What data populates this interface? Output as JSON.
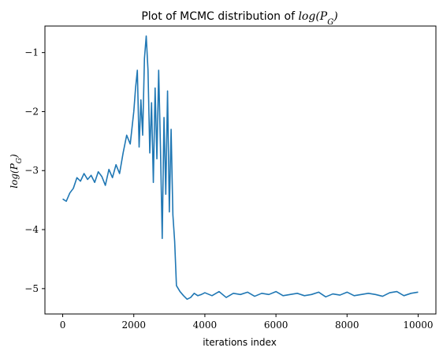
{
  "chart_data": {
    "type": "line",
    "title_prefix": "Plot of MCMC distribution of ",
    "title_math": "log(P",
    "title_math_sub": "G",
    "title_math_close": ")",
    "xlabel": "iterations index",
    "ylabel": "log(P",
    "ylabel_sub": "G",
    "ylabel_close": ")",
    "xlim": [
      -500,
      10500
    ],
    "ylim": [
      -5.43,
      -0.55
    ],
    "xticks": [
      0,
      2000,
      4000,
      6000,
      8000,
      10000
    ],
    "xtick_labels": [
      "0",
      "2000",
      "4000",
      "6000",
      "8000",
      "10000"
    ],
    "yticks": [
      -5,
      -4,
      -3,
      -2,
      -1
    ],
    "ytick_labels": [
      "−5",
      "−4",
      "−3",
      "−2",
      "−1"
    ],
    "grid": false,
    "series": [
      {
        "color": "#1f77b4",
        "x": [
          0,
          100,
          200,
          300,
          400,
          500,
          600,
          700,
          800,
          900,
          1000,
          1100,
          1200,
          1300,
          1400,
          1500,
          1600,
          1700,
          1800,
          1900,
          2000,
          2050,
          2100,
          2150,
          2200,
          2250,
          2300,
          2350,
          2400,
          2450,
          2500,
          2550,
          2600,
          2650,
          2700,
          2750,
          2800,
          2850,
          2900,
          2950,
          3000,
          3050,
          3100,
          3150,
          3200,
          3300,
          3400,
          3500,
          3600,
          3700,
          3800,
          3900,
          4000,
          4200,
          4400,
          4600,
          4800,
          5000,
          5200,
          5400,
          5600,
          5800,
          6000,
          6200,
          6400,
          6600,
          6800,
          7000,
          7200,
          7400,
          7600,
          7800,
          8000,
          8200,
          8400,
          8600,
          8800,
          9000,
          9200,
          9400,
          9600,
          9800,
          10000
        ],
        "y": [
          -3.48,
          -3.52,
          -3.38,
          -3.3,
          -3.12,
          -3.18,
          -3.05,
          -3.15,
          -3.08,
          -3.2,
          -3.02,
          -3.1,
          -3.25,
          -2.98,
          -3.12,
          -2.9,
          -3.05,
          -2.7,
          -2.4,
          -2.55,
          -2.0,
          -1.6,
          -1.3,
          -2.6,
          -1.8,
          -2.4,
          -1.1,
          -0.72,
          -1.3,
          -2.7,
          -1.85,
          -3.2,
          -1.6,
          -2.8,
          -1.3,
          -2.6,
          -4.15,
          -2.1,
          -3.4,
          -1.65,
          -3.7,
          -2.3,
          -3.75,
          -4.2,
          -4.95,
          -5.05,
          -5.12,
          -5.18,
          -5.15,
          -5.08,
          -5.12,
          -5.1,
          -5.07,
          -5.12,
          -5.05,
          -5.15,
          -5.08,
          -5.1,
          -5.06,
          -5.13,
          -5.08,
          -5.1,
          -5.05,
          -5.12,
          -5.1,
          -5.08,
          -5.12,
          -5.1,
          -5.06,
          -5.14,
          -5.09,
          -5.11,
          -5.06,
          -5.12,
          -5.1,
          -5.08,
          -5.1,
          -5.13,
          -5.07,
          -5.05,
          -5.12,
          -5.08,
          -5.06
        ]
      }
    ]
  }
}
